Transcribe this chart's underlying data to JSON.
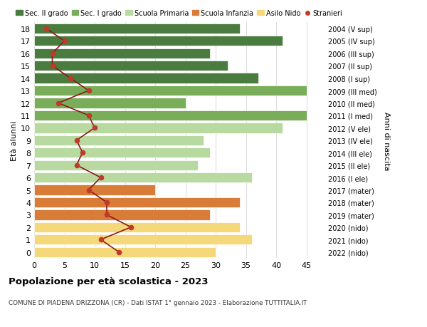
{
  "ages": [
    18,
    17,
    16,
    15,
    14,
    13,
    12,
    11,
    10,
    9,
    8,
    7,
    6,
    5,
    4,
    3,
    2,
    1,
    0
  ],
  "years": [
    "2004 (V sup)",
    "2005 (IV sup)",
    "2006 (III sup)",
    "2007 (II sup)",
    "2008 (I sup)",
    "2009 (III med)",
    "2010 (II med)",
    "2011 (I med)",
    "2012 (V ele)",
    "2013 (IV ele)",
    "2014 (III ele)",
    "2015 (II ele)",
    "2016 (I ele)",
    "2017 (mater)",
    "2018 (mater)",
    "2019 (mater)",
    "2020 (nido)",
    "2021 (nido)",
    "2022 (nido)"
  ],
  "bar_values": [
    34,
    41,
    29,
    32,
    37,
    45,
    25,
    45,
    41,
    28,
    29,
    27,
    36,
    20,
    34,
    29,
    34,
    36,
    30
  ],
  "bar_colors": [
    "#4a7c3f",
    "#4a7c3f",
    "#4a7c3f",
    "#4a7c3f",
    "#4a7c3f",
    "#7aad5a",
    "#7aad5a",
    "#7aad5a",
    "#b8d9a0",
    "#b8d9a0",
    "#b8d9a0",
    "#b8d9a0",
    "#b8d9a0",
    "#d87c38",
    "#d87c38",
    "#d87c38",
    "#f5d87a",
    "#f5d87a",
    "#f5d87a"
  ],
  "stranieri": [
    2,
    5,
    3,
    3,
    6,
    9,
    4,
    9,
    10,
    7,
    8,
    7,
    11,
    9,
    12,
    12,
    16,
    11,
    14
  ],
  "legend_labels": [
    "Sec. II grado",
    "Sec. I grado",
    "Scuola Primaria",
    "Scuola Infanzia",
    "Asilo Nido",
    "Stranieri"
  ],
  "legend_colors": [
    "#4a7c3f",
    "#7aad5a",
    "#b8d9a0",
    "#d87c38",
    "#f5d87a",
    "#c0392b"
  ],
  "ylabel_left": "Età alunni",
  "ylabel_right": "Anni di nascita",
  "title": "Popolazione per età scolastica - 2023",
  "subtitle": "COMUNE DI PIADENA DRIZZONA (CR) - Dati ISTAT 1° gennaio 2023 - Elaborazione TUTTITALIA.IT",
  "xlim": [
    0,
    48
  ],
  "xticks": [
    0,
    5,
    10,
    15,
    20,
    25,
    30,
    35,
    40,
    45
  ],
  "background_color": "#ffffff",
  "grid_color": "#dddddd",
  "stranieri_color": "#c0392b",
  "stranieri_line_color": "#8b1a1a"
}
